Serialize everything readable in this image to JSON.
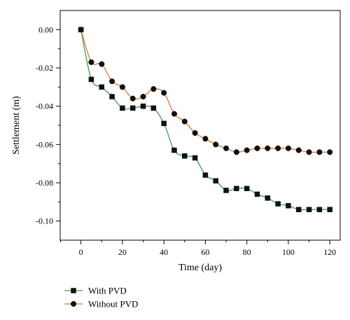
{
  "chart_data": {
    "type": "line",
    "xlabel": "Time (day)",
    "ylabel": "Settlement (m)",
    "xlim": [
      -10,
      125
    ],
    "ylim": [
      -0.11,
      0.01
    ],
    "x_ticks": [
      "0",
      "20",
      "40",
      "60",
      "80",
      "100",
      "120"
    ],
    "y_ticks": [
      "0.00",
      "-0.02",
      "-0.04",
      "-0.06",
      "-0.08",
      "-0.10"
    ],
    "grid": false,
    "legend_position": "bottom-left",
    "x": [
      0,
      5,
      10,
      15,
      20,
      25,
      30,
      35,
      40,
      45,
      50,
      55,
      60,
      65,
      70,
      75,
      80,
      85,
      90,
      95,
      100,
      105,
      110,
      115,
      120
    ],
    "series": [
      {
        "name": "With PVD",
        "color": "#3a9a5c",
        "marker": "square",
        "values": [
          0.0,
          -0.026,
          -0.03,
          -0.035,
          -0.041,
          -0.041,
          -0.04,
          -0.041,
          -0.049,
          -0.063,
          -0.066,
          -0.067,
          -0.076,
          -0.079,
          -0.084,
          -0.083,
          -0.083,
          -0.086,
          -0.088,
          -0.091,
          -0.092,
          -0.094,
          -0.094,
          -0.094,
          -0.094
        ]
      },
      {
        "name": "Without PVD",
        "color": "#e0762a",
        "marker": "circle",
        "values": [
          0.0,
          -0.017,
          -0.018,
          -0.027,
          -0.03,
          -0.036,
          -0.035,
          -0.031,
          -0.033,
          -0.044,
          -0.048,
          -0.054,
          -0.057,
          -0.06,
          -0.062,
          -0.064,
          -0.063,
          -0.062,
          -0.062,
          -0.062,
          -0.062,
          -0.063,
          -0.064,
          -0.064,
          -0.064
        ]
      }
    ]
  }
}
